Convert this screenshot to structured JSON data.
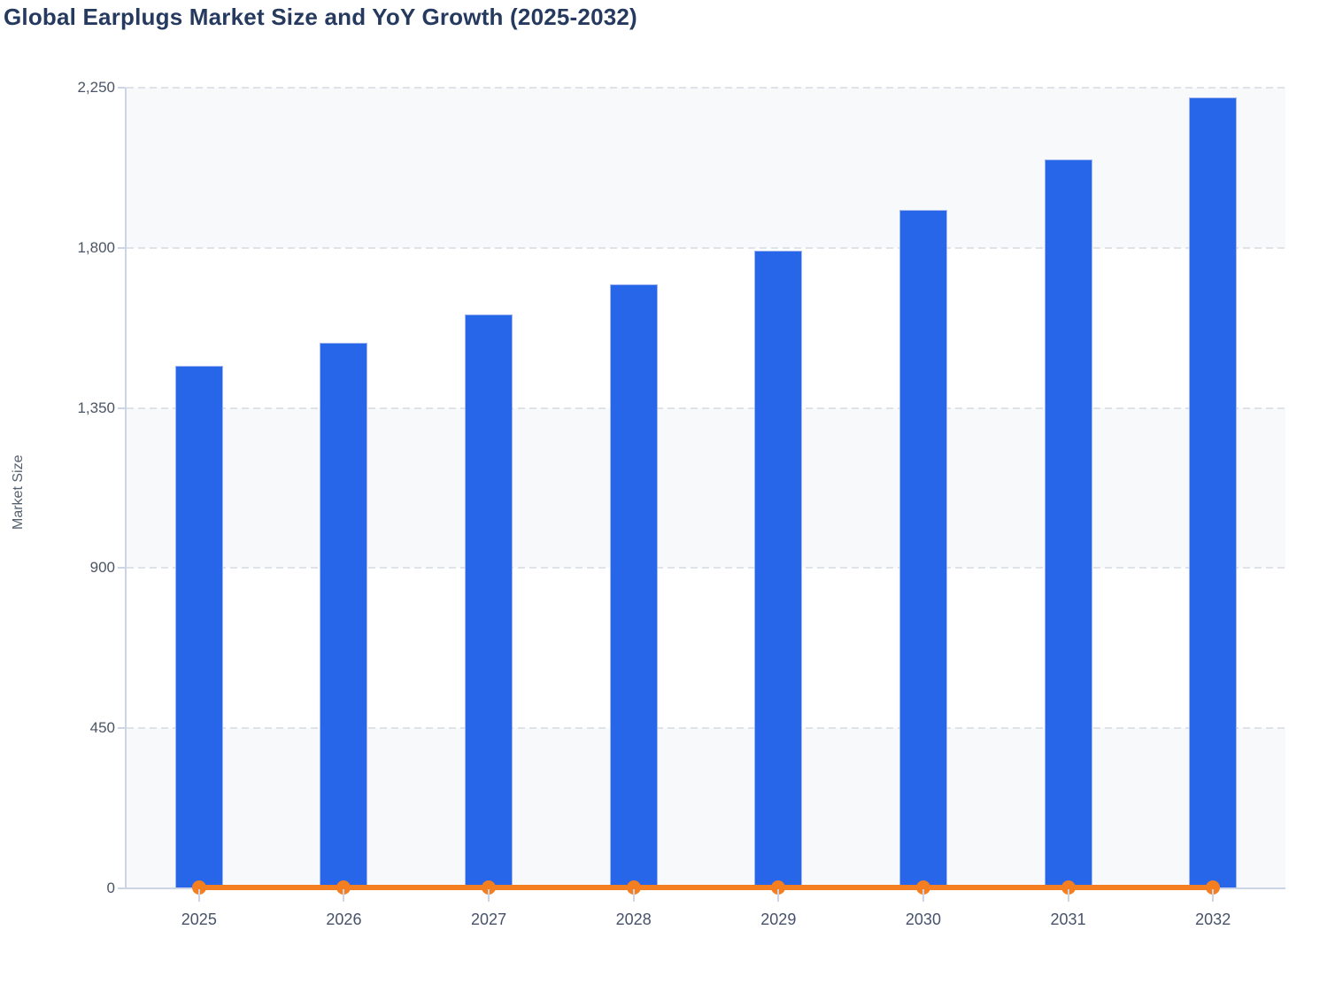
{
  "chart": {
    "title": "Global Earplugs Market Size and YoY Growth (2025-2032)",
    "y_axis_label": "Market Size",
    "legend": "none"
  },
  "chart_data": {
    "type": "bar",
    "title": "Global Earplugs Market Size and YoY Growth (2025-2032)",
    "xlabel": "",
    "ylabel": "Market Size",
    "ylim": [
      0,
      2250
    ],
    "y_tick_labels": [
      "0",
      "450",
      "900",
      "1,350",
      "1,800",
      "2,250"
    ],
    "categories": [
      "2025",
      "2026",
      "2027",
      "2028",
      "2029",
      "2030",
      "2031",
      "2032"
    ],
    "series": [
      {
        "name": "Market Size",
        "type": "bar",
        "color": "#2765e9",
        "values": [
          1465,
          1530,
          1610,
          1695,
          1790,
          1905,
          2045,
          2220
        ]
      },
      {
        "name": "YoY Growth",
        "type": "line",
        "color": "#f57e20",
        "values": [
          0,
          0,
          0,
          0,
          0,
          0,
          0,
          0
        ],
        "note": "orange line with round markers renders flat at ~0 on the left Market Size axis"
      }
    ],
    "grid": "horizontal dashed gridlines at 450 intervals",
    "legend_position": "none",
    "plot_background": "alternating horizontal bands"
  },
  "colors": {
    "bar_fill": "#2765e9",
    "bar_border": "#9fb6ef",
    "line_orange": "#f57e20",
    "band_gray": "#f8f9fb",
    "band_white": "#ffffff",
    "gridline": "#dfe2e7",
    "axis_line": "#ccd5e5",
    "title_text": "#253a5e",
    "tick_text": "#4c5565",
    "x_label_text": "#47526a",
    "y_axis_title_text": "#55606f"
  }
}
